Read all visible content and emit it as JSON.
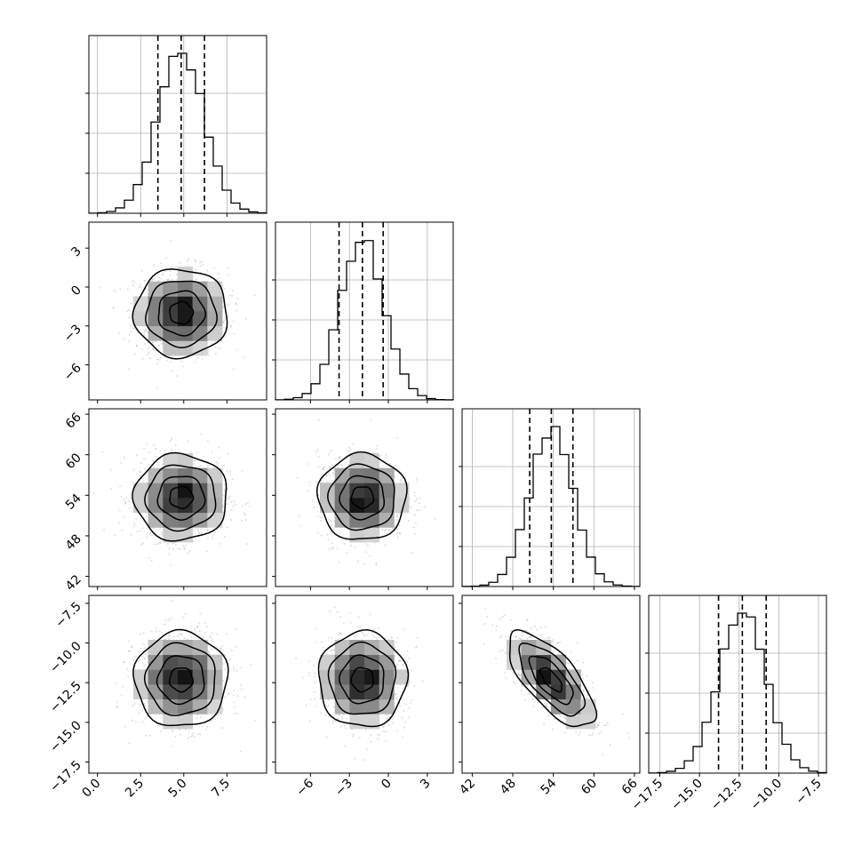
{
  "chart_data": {
    "type": "corner",
    "title": "",
    "grid": true,
    "parameters": [
      {
        "index": 0,
        "range": [
          -0.5,
          9.8
        ],
        "ticks": [
          0.0,
          2.5,
          5.0,
          7.5
        ],
        "tick_labels": [
          "0.0",
          "2.5",
          "5.0",
          "7.5"
        ],
        "quantiles": [
          3.5,
          4.85,
          6.2
        ],
        "mean": 4.85,
        "sd": 1.35
      },
      {
        "index": 1,
        "range": [
          -8.7,
          5.0
        ],
        "ticks": [
          -6,
          -3,
          0,
          3
        ],
        "tick_labels": [
          "−6",
          "−3",
          "0",
          "3"
        ],
        "quantiles": [
          -3.8,
          -2.0,
          -0.4
        ],
        "mean": -2.0,
        "sd": 1.7
      },
      {
        "index": 2,
        "range": [
          40.5,
          66.8
        ],
        "ticks": [
          42,
          48,
          54,
          60,
          66
        ],
        "tick_labels": [
          "42",
          "48",
          "54",
          "60",
          "66"
        ],
        "quantiles": [
          50.5,
          53.7,
          56.9
        ],
        "mean": 53.7,
        "sd": 3.2
      },
      {
        "index": 3,
        "range": [
          -18.2,
          -7.0
        ],
        "ticks": [
          -17.5,
          -15.0,
          -12.5,
          -10.0,
          -7.5
        ],
        "tick_labels": [
          "−17.5",
          "−15.0",
          "−12.5",
          "−10.0",
          "−7.5"
        ],
        "quantiles": [
          -13.8,
          -12.3,
          -10.8
        ],
        "mean": -12.3,
        "sd": 1.5
      }
    ],
    "correlation": {
      "pair": [
        2,
        3
      ],
      "rho": -0.7
    },
    "histogram_peak_counts": [
      1.0,
      1.0,
      1.0,
      1.0
    ]
  }
}
